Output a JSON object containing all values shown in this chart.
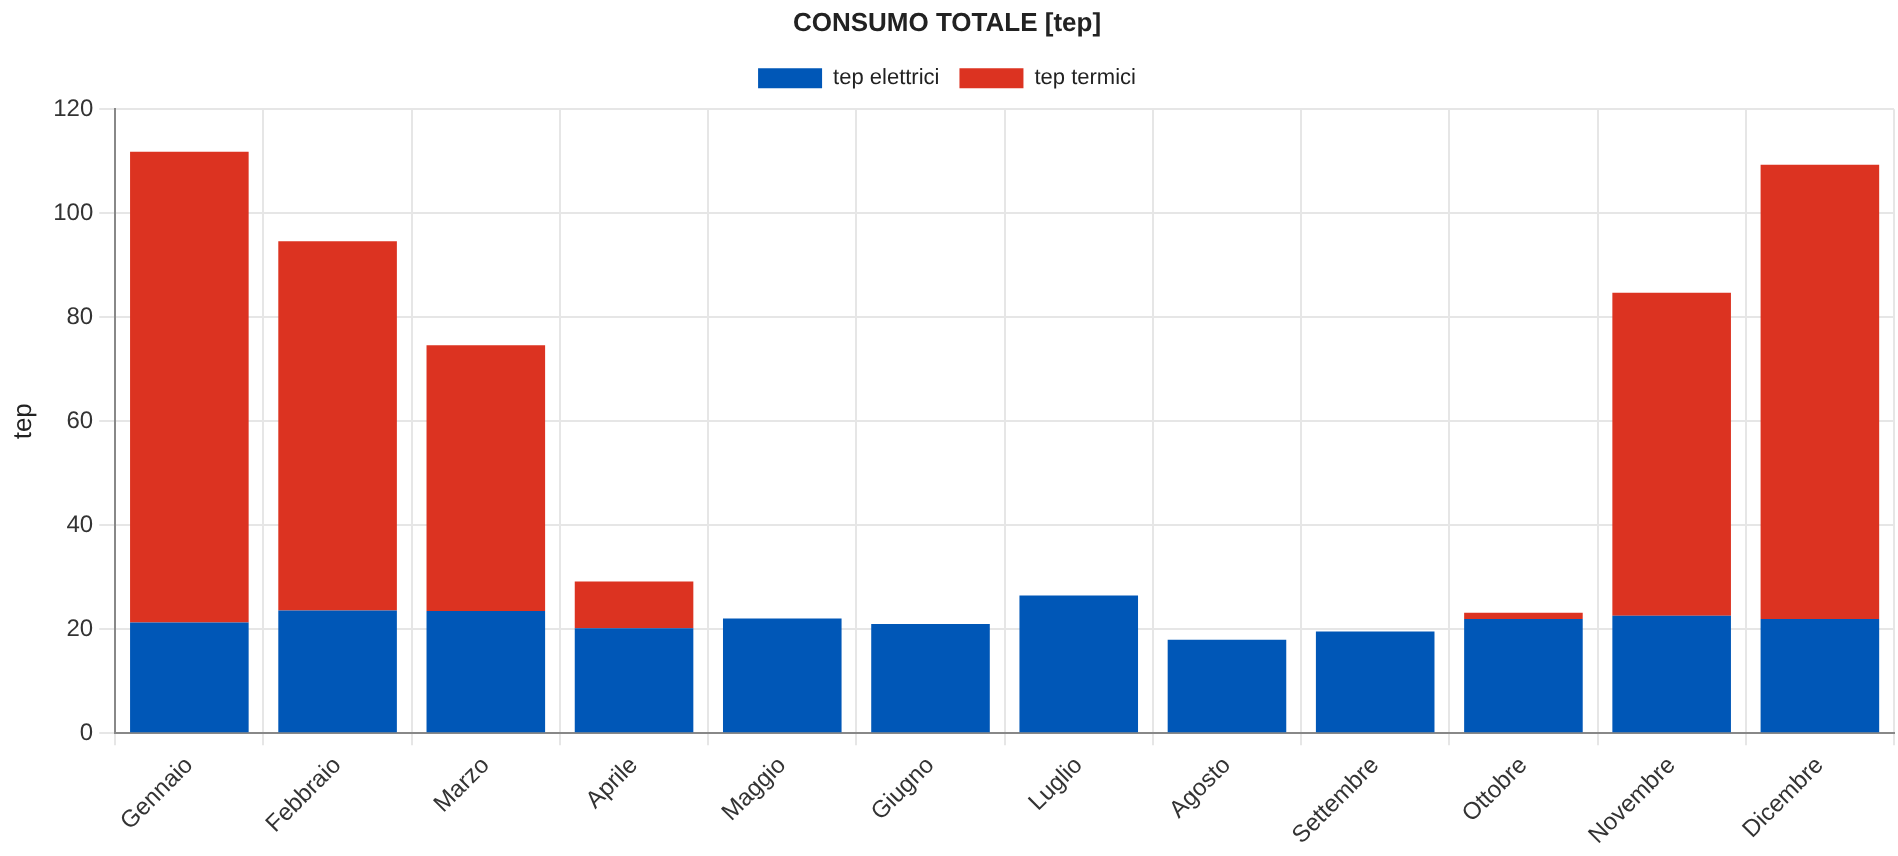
{
  "chart_data": {
    "type": "bar",
    "title": "CONSUMO TOTALE [tep]",
    "ylabel": "tep",
    "categories": [
      "Gennaio",
      "Febbraio",
      "Marzo",
      "Aprile",
      "Maggio",
      "Giugno",
      "Luglio",
      "Agosto",
      "Settembre",
      "Ottobre",
      "Novembre",
      "Dicembre"
    ],
    "series": [
      {
        "name": "tep elettrici",
        "color": "#0057b7",
        "values": [
          21.3,
          23.6,
          23.5,
          20.2,
          22.1,
          21,
          26.5,
          18,
          19.6,
          22,
          22.6,
          22
        ]
      },
      {
        "name": "tep termici",
        "color": "#dc3321",
        "values": [
          90.5,
          71,
          51.1,
          9,
          null,
          null,
          null,
          null,
          null,
          1.2,
          62.1,
          87.3
        ]
      }
    ],
    "stacked": true,
    "ylim": [
      0,
      120
    ],
    "yticks": [
      0,
      20,
      40,
      60,
      80,
      100,
      120
    ],
    "grid": true,
    "legend": "top"
  }
}
